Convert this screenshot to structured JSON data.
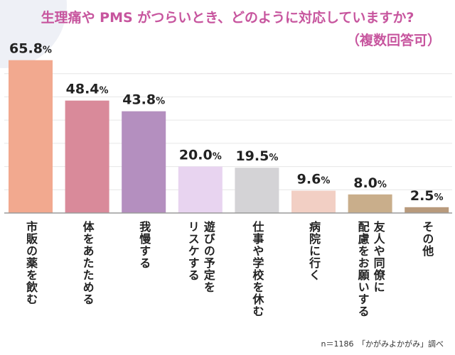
{
  "header": {
    "title_line_1": "生理痛や PMS がつらいとき、どのように対応していますか?",
    "title_line_2": "（複数回答可）"
  },
  "chart_data": {
    "type": "bar",
    "title": "生理痛や PMS がつらいとき、どのように対応していますか?（複数回答可）",
    "categories": [
      "市販の薬を飲む",
      "体をあたためる",
      "我慢する",
      "遊びの予定を\nリスケする",
      "仕事や学校を休む",
      "病院に行く",
      "友人や同僚に\n配慮をお願いする",
      "その他"
    ],
    "values": [
      65.8,
      48.4,
      43.8,
      20.0,
      19.5,
      9.6,
      8.0,
      2.5
    ],
    "value_labels": [
      "65.8",
      "48.4",
      "43.8",
      "20.0",
      "19.5",
      "9.6",
      "8.0",
      "2.5"
    ],
    "unit": "%",
    "colors": [
      "#f2a98f",
      "#d98a9a",
      "#b48fbf",
      "#e8d4f0",
      "#d4d3d6",
      "#f2cfc4",
      "#c9ae8b",
      "#b89a7c"
    ],
    "ylim": [
      0,
      70
    ],
    "grid": true,
    "xlabel": "",
    "ylabel": ""
  },
  "footnote": {
    "text": "n＝1186　「かがみよかがみ」調べ"
  }
}
